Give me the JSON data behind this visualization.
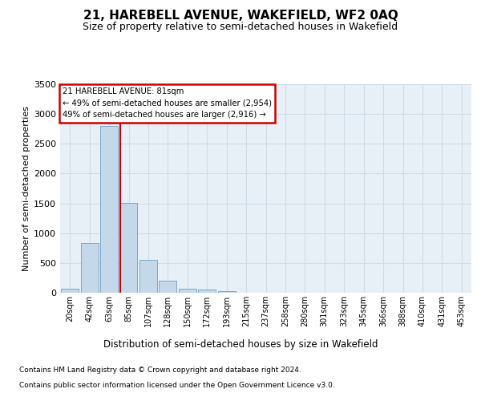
{
  "title": "21, HAREBELL AVENUE, WAKEFIELD, WF2 0AQ",
  "subtitle": "Size of property relative to semi-detached houses in Wakefield",
  "xlabel": "Distribution of semi-detached houses by size in Wakefield",
  "ylabel": "Number of semi-detached properties",
  "bar_color": "#c5d8ea",
  "bar_edge_color": "#7aaac8",
  "bar_values": [
    65,
    840,
    2800,
    1510,
    555,
    200,
    65,
    55,
    30,
    0,
    0,
    0,
    0,
    0,
    0,
    0,
    0,
    0,
    0,
    0,
    0
  ],
  "categories": [
    "20sqm",
    "42sqm",
    "63sqm",
    "85sqm",
    "107sqm",
    "128sqm",
    "150sqm",
    "172sqm",
    "193sqm",
    "215sqm",
    "237sqm",
    "258sqm",
    "280sqm",
    "301sqm",
    "323sqm",
    "345sqm",
    "366sqm",
    "388sqm",
    "410sqm",
    "431sqm",
    "453sqm"
  ],
  "ylim": [
    0,
    3500
  ],
  "yticks": [
    0,
    500,
    1000,
    1500,
    2000,
    2500,
    3000,
    3500
  ],
  "vline_position": 2.57,
  "annotation_text": "21 HAREBELL AVENUE: 81sqm\n← 49% of semi-detached houses are smaller (2,954)\n49% of semi-detached houses are larger (2,916) →",
  "annotation_box_bg": "#ffffff",
  "annotation_box_edge": "#cc0000",
  "vline_color": "#cc0000",
  "footer_line1": "Contains HM Land Registry data © Crown copyright and database right 2024.",
  "footer_line2": "Contains public sector information licensed under the Open Government Licence v3.0.",
  "grid_color": "#ccdce8",
  "bg_color": "#e8f0f7"
}
